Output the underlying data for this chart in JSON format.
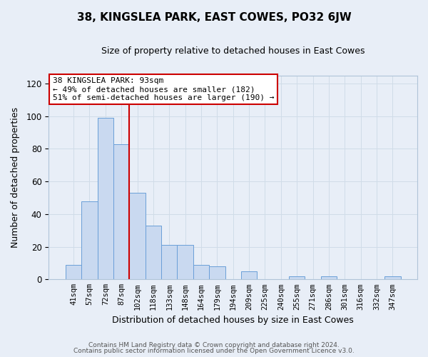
{
  "title": "38, KINGSLEA PARK, EAST COWES, PO32 6JW",
  "subtitle": "Size of property relative to detached houses in East Cowes",
  "xlabel": "Distribution of detached houses by size in East Cowes",
  "ylabel": "Number of detached properties",
  "footer_line1": "Contains HM Land Registry data © Crown copyright and database right 2024.",
  "footer_line2": "Contains public sector information licensed under the Open Government Licence v3.0.",
  "bar_labels": [
    "41sqm",
    "57sqm",
    "72sqm",
    "87sqm",
    "102sqm",
    "118sqm",
    "133sqm",
    "148sqm",
    "164sqm",
    "179sqm",
    "194sqm",
    "209sqm",
    "225sqm",
    "240sqm",
    "255sqm",
    "271sqm",
    "286sqm",
    "301sqm",
    "316sqm",
    "332sqm",
    "347sqm"
  ],
  "bar_values": [
    9,
    48,
    99,
    83,
    53,
    33,
    21,
    21,
    9,
    8,
    0,
    5,
    0,
    0,
    2,
    0,
    2,
    0,
    0,
    0,
    2
  ],
  "bar_color": "#c9d9f0",
  "bar_edge_color": "#6a9fd8",
  "vline_color": "#cc0000",
  "vline_pos": 3.5,
  "ylim": [
    0,
    125
  ],
  "yticks": [
    0,
    20,
    40,
    60,
    80,
    100,
    120
  ],
  "annotation_title": "38 KINGSLEA PARK: 93sqm",
  "annotation_line1": "← 49% of detached houses are smaller (182)",
  "annotation_line2": "51% of semi-detached houses are larger (190) →",
  "annotation_box_color": "#ffffff",
  "annotation_box_edge_color": "#cc0000",
  "grid_color": "#d0dce8",
  "bg_color": "#e8eef7",
  "title_fontsize": 11,
  "subtitle_fontsize": 9
}
